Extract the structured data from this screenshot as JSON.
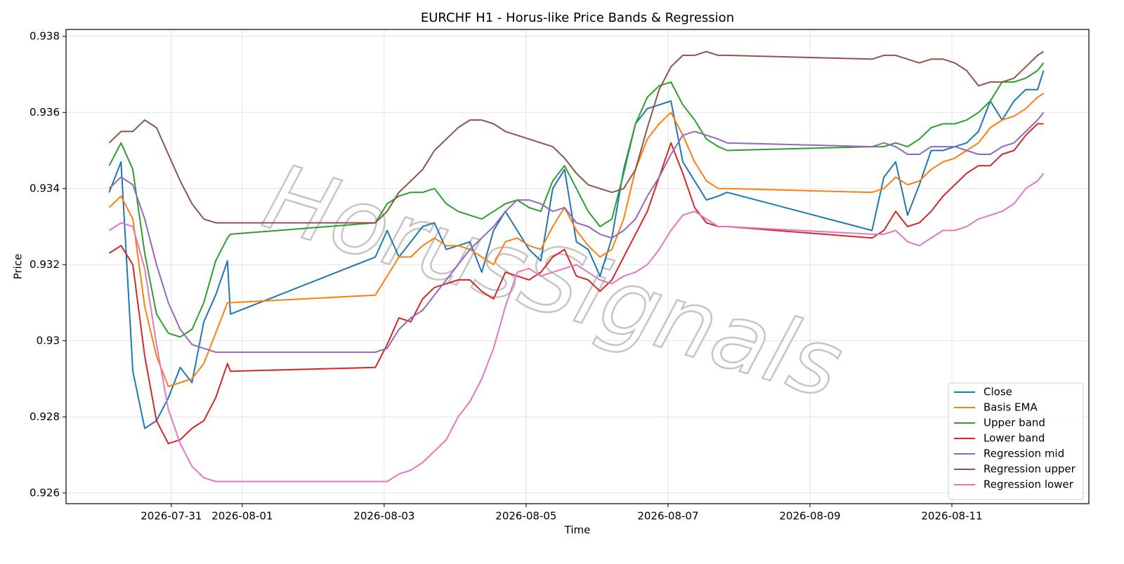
{
  "chart_data": {
    "type": "line",
    "title": "EURCHF H1 - Horus-like Price Bands & Regression",
    "xlabel": "Time",
    "ylabel": "Price",
    "watermark": "HorusSignals",
    "x": [
      "2026-07-30T03:00",
      "2026-07-30T07:00",
      "2026-07-30T11:00",
      "2026-07-30T15:00",
      "2026-07-30T19:00",
      "2026-07-30T23:00",
      "2026-07-31T03:00",
      "2026-07-31T07:00",
      "2026-07-31T11:00",
      "2026-07-31T15:00",
      "2026-07-31T19:00",
      "2026-07-31T20:00",
      "2026-08-02T21:00",
      "2026-08-03T01:00",
      "2026-08-03T05:00",
      "2026-08-03T09:00",
      "2026-08-03T13:00",
      "2026-08-03T17:00",
      "2026-08-03T21:00",
      "2026-08-04T01:00",
      "2026-08-04T05:00",
      "2026-08-04T09:00",
      "2026-08-04T13:00",
      "2026-08-04T17:00",
      "2026-08-04T21:00",
      "2026-08-05T01:00",
      "2026-08-05T05:00",
      "2026-08-05T09:00",
      "2026-08-05T13:00",
      "2026-08-05T17:00",
      "2026-08-05T21:00",
      "2026-08-06T01:00",
      "2026-08-06T05:00",
      "2026-08-06T09:00",
      "2026-08-06T13:00",
      "2026-08-06T17:00",
      "2026-08-06T21:00",
      "2026-08-07T01:00",
      "2026-08-07T05:00",
      "2026-08-07T09:00",
      "2026-08-07T13:00",
      "2026-08-07T17:00",
      "2026-08-07T20:00",
      "2026-08-09T21:00",
      "2026-08-10T01:00",
      "2026-08-10T05:00",
      "2026-08-10T09:00",
      "2026-08-10T13:00",
      "2026-08-10T17:00",
      "2026-08-10T21:00",
      "2026-08-11T01:00",
      "2026-08-11T05:00",
      "2026-08-11T09:00",
      "2026-08-11T13:00",
      "2026-08-11T17:00",
      "2026-08-11T21:00",
      "2026-08-12T01:00",
      "2026-08-12T05:00",
      "2026-08-12T07:00"
    ],
    "series": [
      {
        "name": "Close",
        "color": "#1f77b4",
        "values": [
          0.9339,
          0.9347,
          0.9292,
          0.9277,
          0.9279,
          0.9285,
          0.9293,
          0.9289,
          0.9305,
          0.9312,
          0.9321,
          0.9307,
          0.9322,
          0.9329,
          0.9322,
          0.9326,
          0.933,
          0.9331,
          0.9324,
          0.9325,
          0.9326,
          0.9318,
          0.9329,
          0.9334,
          0.9329,
          0.9324,
          0.9321,
          0.934,
          0.9345,
          0.9326,
          0.9324,
          0.9317,
          0.9327,
          0.9345,
          0.9357,
          0.9361,
          0.9362,
          0.9363,
          0.9347,
          0.9342,
          0.9337,
          0.9338,
          0.9339,
          0.9329,
          0.9343,
          0.9347,
          0.9333,
          0.9341,
          0.935,
          0.935,
          0.9351,
          0.9352,
          0.9355,
          0.9363,
          0.9358,
          0.9363,
          0.9366,
          0.9366,
          0.9371
        ]
      },
      {
        "name": "Basis EMA",
        "color": "#ff7f0e",
        "values": [
          0.9335,
          0.9338,
          0.9332,
          0.9309,
          0.9296,
          0.9288,
          0.9289,
          0.929,
          0.9294,
          0.9302,
          0.931,
          0.931,
          0.9312,
          0.9317,
          0.9322,
          0.9322,
          0.9325,
          0.9327,
          0.9325,
          0.9325,
          0.9324,
          0.9322,
          0.932,
          0.9326,
          0.9327,
          0.9325,
          0.9324,
          0.933,
          0.9335,
          0.9329,
          0.9325,
          0.9322,
          0.9324,
          0.9332,
          0.9345,
          0.9353,
          0.9357,
          0.936,
          0.9354,
          0.9347,
          0.9342,
          0.934,
          0.934,
          0.9339,
          0.934,
          0.9343,
          0.9341,
          0.9342,
          0.9345,
          0.9347,
          0.9348,
          0.935,
          0.9352,
          0.9356,
          0.9358,
          0.9359,
          0.9361,
          0.9364,
          0.9365
        ]
      },
      {
        "name": "Upper band",
        "color": "#2ca02c",
        "values": [
          0.9346,
          0.9352,
          0.9345,
          0.9323,
          0.9307,
          0.9302,
          0.9301,
          0.9303,
          0.931,
          0.9321,
          0.9327,
          0.9328,
          0.9331,
          0.9336,
          0.9338,
          0.9339,
          0.9339,
          0.934,
          0.9336,
          0.9334,
          0.9333,
          0.9332,
          0.9334,
          0.9336,
          0.9337,
          0.9335,
          0.9334,
          0.9342,
          0.9346,
          0.934,
          0.9334,
          0.933,
          0.9332,
          0.9344,
          0.9357,
          0.9364,
          0.9367,
          0.9368,
          0.9362,
          0.9358,
          0.9353,
          0.9351,
          0.935,
          0.9351,
          0.9351,
          0.9352,
          0.9351,
          0.9353,
          0.9356,
          0.9357,
          0.9357,
          0.9358,
          0.936,
          0.9363,
          0.9368,
          0.9368,
          0.9369,
          0.9371,
          0.9373
        ]
      },
      {
        "name": "Lower band",
        "color": "#d62728",
        "values": [
          0.9323,
          0.9325,
          0.932,
          0.9296,
          0.9279,
          0.9273,
          0.9274,
          0.9277,
          0.9279,
          0.9285,
          0.9294,
          0.9292,
          0.9293,
          0.9299,
          0.9306,
          0.9305,
          0.9311,
          0.9314,
          0.9315,
          0.9316,
          0.9316,
          0.9313,
          0.9311,
          0.9318,
          0.9317,
          0.9316,
          0.9318,
          0.9322,
          0.9324,
          0.9317,
          0.9316,
          0.9313,
          0.9316,
          0.9322,
          0.9328,
          0.9334,
          0.9343,
          0.9352,
          0.9344,
          0.9335,
          0.9331,
          0.933,
          0.933,
          0.9327,
          0.9329,
          0.9334,
          0.933,
          0.9331,
          0.9334,
          0.9338,
          0.9341,
          0.9344,
          0.9346,
          0.9346,
          0.9349,
          0.935,
          0.9354,
          0.9357,
          0.9357
        ]
      },
      {
        "name": "Regression mid",
        "color": "#9467bd",
        "values": [
          0.934,
          0.9343,
          0.9341,
          0.9332,
          0.932,
          0.931,
          0.9303,
          0.9299,
          0.9298,
          0.9297,
          0.9297,
          0.9297,
          0.9297,
          0.9298,
          0.9303,
          0.9306,
          0.9308,
          0.9312,
          0.9316,
          0.932,
          0.9324,
          0.9327,
          0.933,
          0.9334,
          0.9337,
          0.9337,
          0.9336,
          0.9334,
          0.9335,
          0.9331,
          0.933,
          0.9328,
          0.9327,
          0.9329,
          0.9332,
          0.9338,
          0.9343,
          0.9349,
          0.9354,
          0.9355,
          0.9354,
          0.9353,
          0.9352,
          0.9351,
          0.9352,
          0.9351,
          0.9349,
          0.9349,
          0.9351,
          0.9351,
          0.9351,
          0.935,
          0.9349,
          0.9349,
          0.9351,
          0.9352,
          0.9355,
          0.9358,
          0.936
        ]
      },
      {
        "name": "Regression upper",
        "color": "#8c564b",
        "values": [
          0.9352,
          0.9355,
          0.9355,
          0.9358,
          0.9356,
          0.9349,
          0.9342,
          0.9336,
          0.9332,
          0.9331,
          0.9331,
          0.9331,
          0.9331,
          0.9334,
          0.9339,
          0.9342,
          0.9345,
          0.935,
          0.9353,
          0.9356,
          0.9358,
          0.9358,
          0.9357,
          0.9355,
          0.9354,
          0.9353,
          0.9352,
          0.9351,
          0.9348,
          0.9344,
          0.9341,
          0.934,
          0.9339,
          0.934,
          0.9345,
          0.9356,
          0.9366,
          0.9372,
          0.9375,
          0.9375,
          0.9376,
          0.9375,
          0.9375,
          0.9374,
          0.9375,
          0.9375,
          0.9374,
          0.9373,
          0.9374,
          0.9374,
          0.9373,
          0.9371,
          0.9367,
          0.9368,
          0.9368,
          0.9369,
          0.9372,
          0.9375,
          0.9376
        ]
      },
      {
        "name": "Regression lower",
        "color": "#e377c2",
        "values": [
          0.9329,
          0.9331,
          0.933,
          0.9319,
          0.9299,
          0.9282,
          0.9273,
          0.9267,
          0.9264,
          0.9263,
          0.9263,
          0.9263,
          0.9263,
          0.9263,
          0.9265,
          0.9266,
          0.9268,
          0.9271,
          0.9274,
          0.928,
          0.9284,
          0.929,
          0.9298,
          0.9309,
          0.9318,
          0.9319,
          0.9317,
          0.9318,
          0.9319,
          0.932,
          0.9318,
          0.9316,
          0.9315,
          0.9317,
          0.9318,
          0.932,
          0.9324,
          0.9329,
          0.9333,
          0.9334,
          0.9332,
          0.933,
          0.933,
          0.9328,
          0.9328,
          0.9329,
          0.9326,
          0.9325,
          0.9327,
          0.9329,
          0.9329,
          0.933,
          0.9332,
          0.9333,
          0.9334,
          0.9336,
          0.934,
          0.9342,
          0.9344
        ]
      }
    ],
    "xlim": [
      "2026-07-29T12:24",
      "2026-08-12T22:20"
    ],
    "xticks": [
      "2026-07-31",
      "2026-08-01",
      "2026-08-03",
      "2026-08-05",
      "2026-08-07",
      "2026-08-09",
      "2026-08-11"
    ],
    "ylim": [
      0.92572,
      0.93818
    ],
    "yticks": [
      0.926,
      0.928,
      0.93,
      0.932,
      0.934,
      0.936,
      0.938
    ],
    "grid": true,
    "legend": "lower right"
  }
}
